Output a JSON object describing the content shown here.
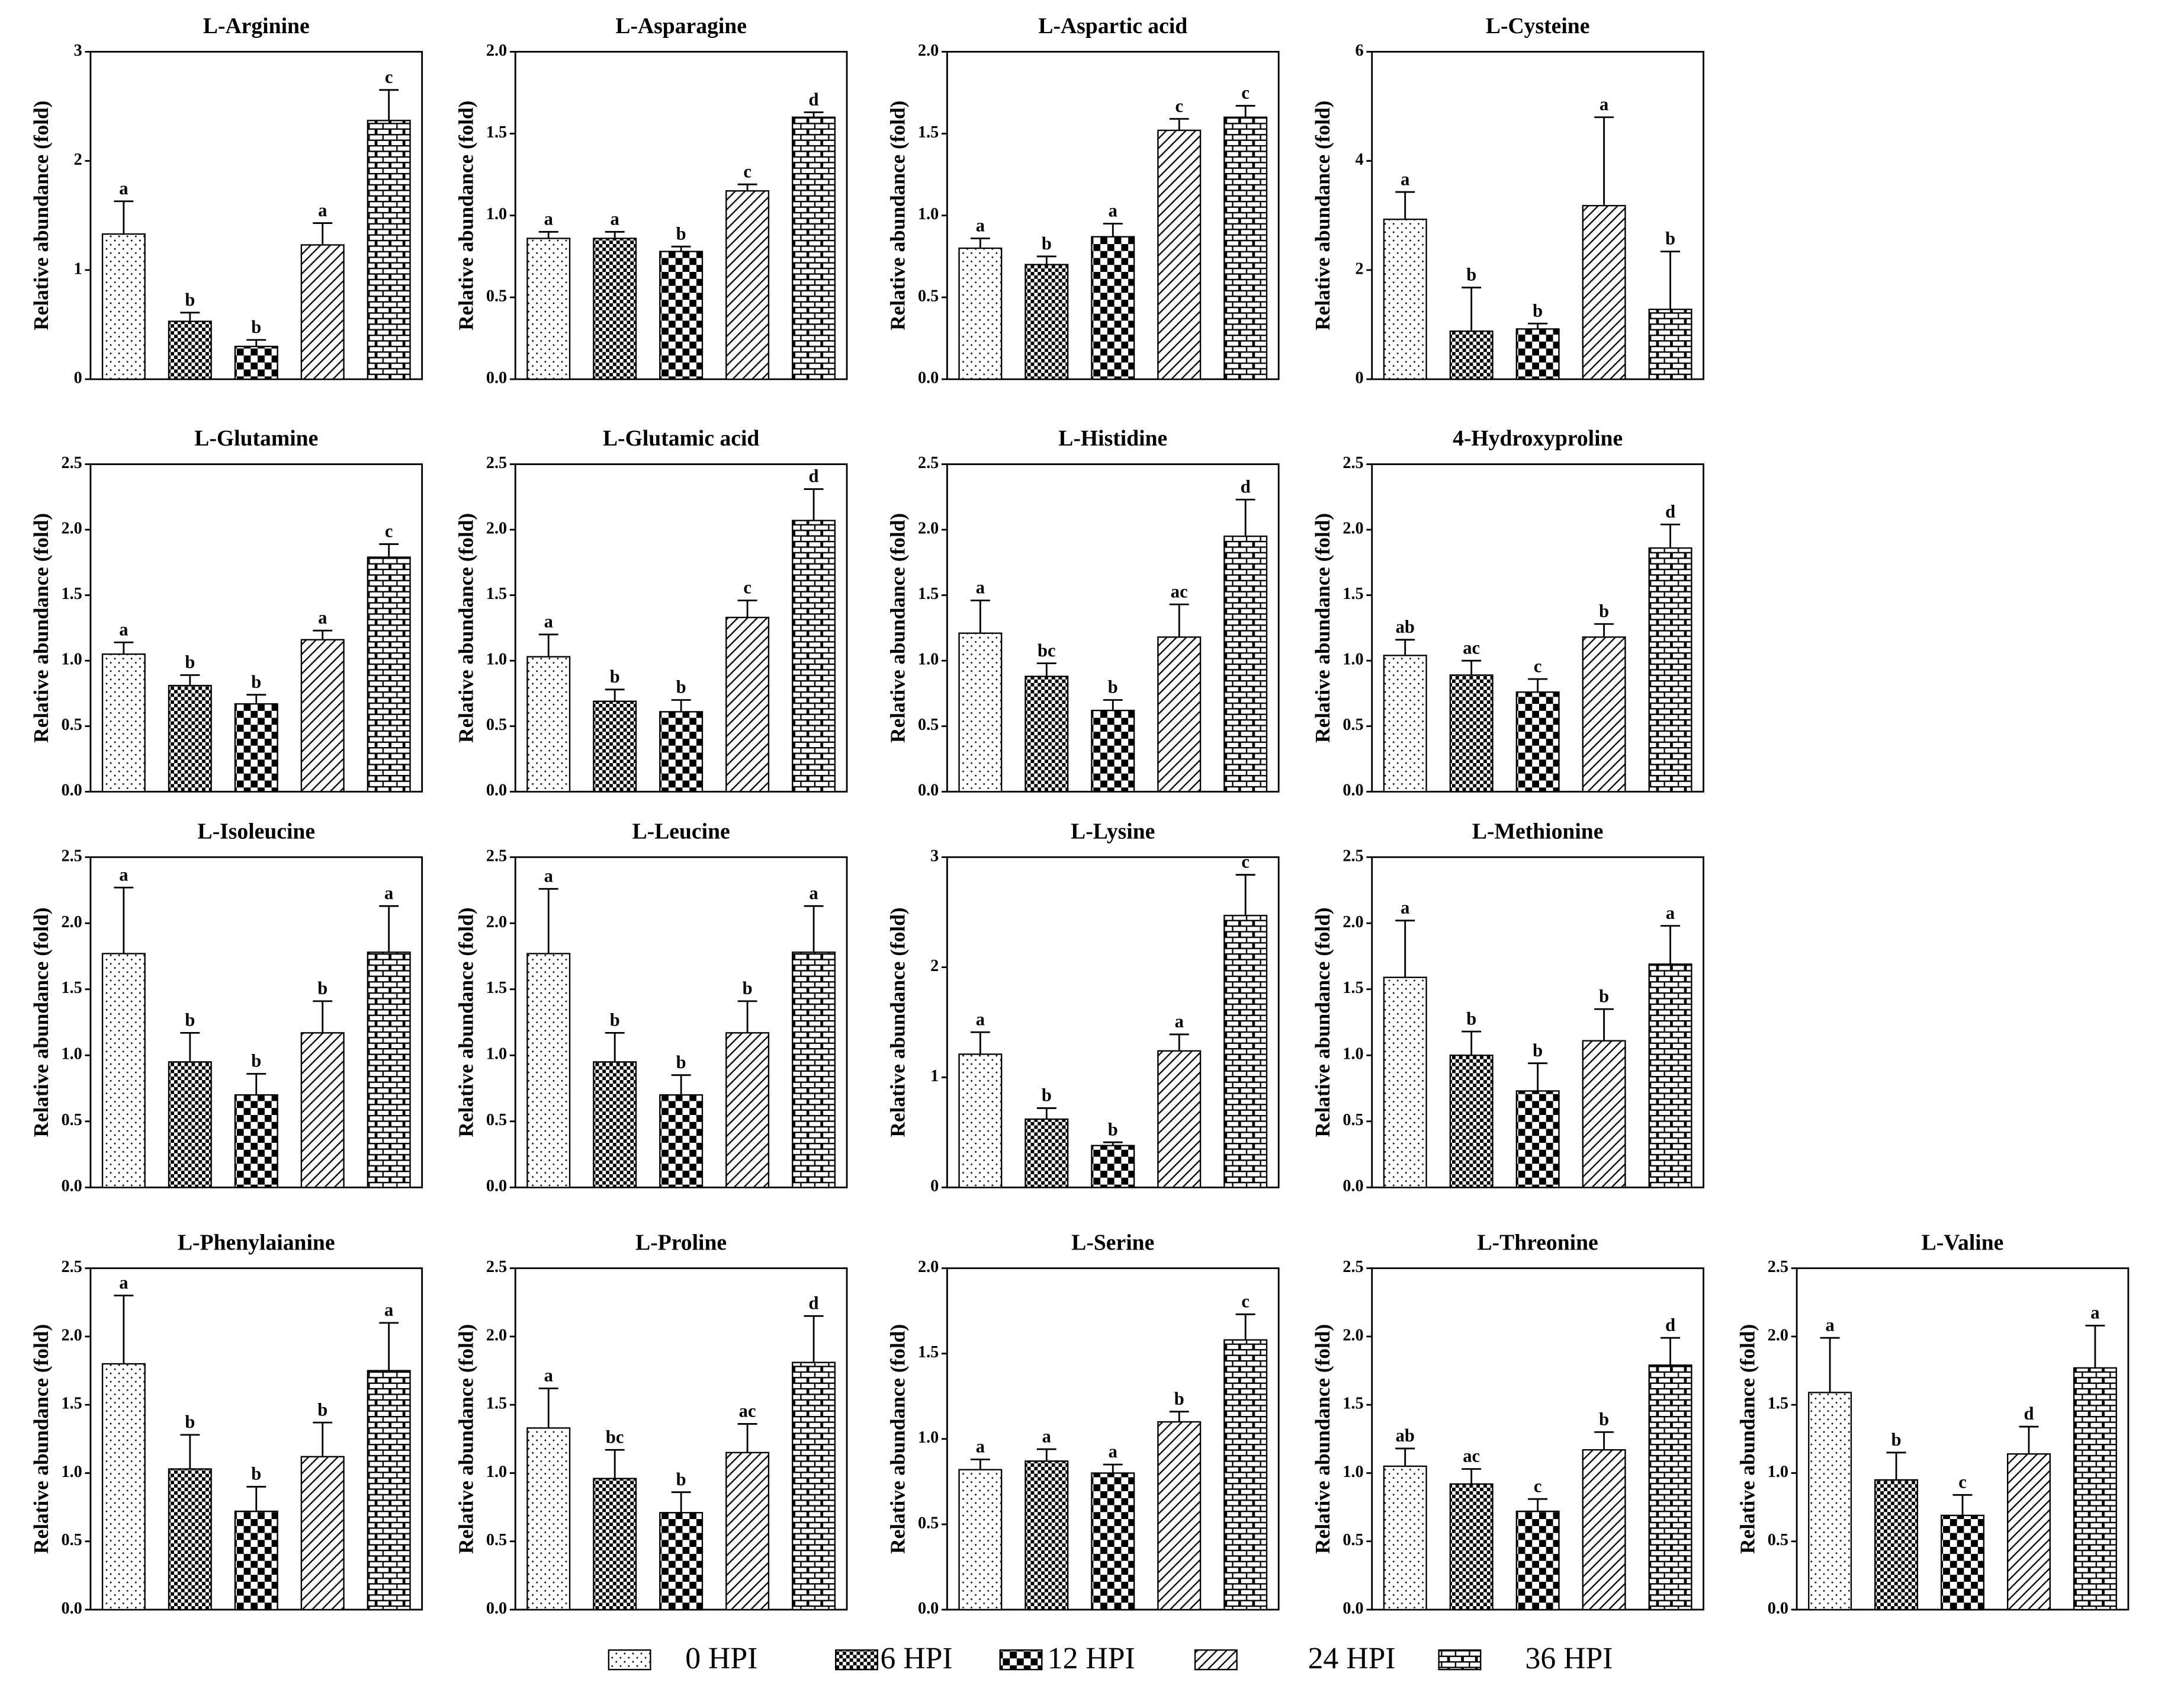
{
  "chart_data": [
    {
      "type": "bar",
      "title": "L-Arginine",
      "y_label": "Relative abundance (fold)",
      "values": [
        1.33,
        0.53,
        0.3,
        1.23,
        2.37
      ],
      "errors": [
        0.3,
        0.08,
        0.06,
        0.2,
        0.28
      ],
      "letters": [
        "a",
        "b",
        "b",
        "a",
        "c"
      ],
      "ylim": [
        0,
        3
      ],
      "yticks": [
        0,
        1,
        2,
        3
      ]
    },
    {
      "type": "bar",
      "title": "L-Asparagine",
      "y_label": "Relative abundance (fold)",
      "values": [
        0.86,
        0.86,
        0.78,
        1.15,
        1.6
      ],
      "errors": [
        0.04,
        0.04,
        0.03,
        0.04,
        0.03
      ],
      "letters": [
        "a",
        "a",
        "b",
        "c",
        "d"
      ],
      "ylim": [
        0,
        2
      ],
      "yticks": [
        {
          "value": 0,
          "label": "0.0"
        },
        0.5,
        {
          "value": 1,
          "label": "1.0"
        },
        1.5,
        {
          "value": 2,
          "label": "2.0"
        }
      ]
    },
    {
      "type": "bar",
      "title": "L-Aspartic acid",
      "y_label": "Relative abundance (fold)",
      "values": [
        0.8,
        0.7,
        0.87,
        1.52,
        1.6
      ],
      "errors": [
        0.06,
        0.05,
        0.08,
        0.07,
        0.07
      ],
      "letters": [
        "a",
        "b",
        "a",
        "c",
        "c"
      ],
      "ylim": [
        0,
        2
      ],
      "yticks": [
        {
          "value": 0,
          "label": "0.0"
        },
        0.5,
        {
          "value": 1,
          "label": "1.0"
        },
        1.5,
        {
          "value": 2,
          "label": "2.0"
        }
      ]
    },
    {
      "type": "bar",
      "title": "L-Cysteine",
      "y_label": "Relative abundance (fold)",
      "values": [
        2.93,
        0.88,
        0.92,
        3.18,
        1.28
      ],
      "errors": [
        0.5,
        0.8,
        0.1,
        1.62,
        1.06
      ],
      "letters": [
        "a",
        "b",
        "b",
        "a",
        "b"
      ],
      "ylim": [
        0,
        6
      ],
      "yticks": [
        0,
        2,
        4,
        6
      ]
    },
    {
      "type": "bar",
      "title": "L-Glutamine",
      "y_label": "Relative abundance (fold)",
      "values": [
        1.05,
        0.81,
        0.67,
        1.16,
        1.79
      ],
      "errors": [
        0.09,
        0.08,
        0.07,
        0.07,
        0.1
      ],
      "letters": [
        "a",
        "b",
        "b",
        "a",
        "c"
      ],
      "ylim": [
        0,
        2.5
      ],
      "yticks": [
        {
          "value": 0,
          "label": "0.0"
        },
        0.5,
        {
          "value": 1,
          "label": "1.0"
        },
        1.5,
        {
          "value": 2,
          "label": "2.0"
        },
        2.5
      ]
    },
    {
      "type": "bar",
      "title": "L-Glutamic acid",
      "y_label": "Relative abundance (fold)",
      "values": [
        1.03,
        0.69,
        0.61,
        1.33,
        2.07
      ],
      "errors": [
        0.17,
        0.09,
        0.09,
        0.13,
        0.24
      ],
      "letters": [
        "a",
        "b",
        "b",
        "c",
        "d"
      ],
      "ylim": [
        0,
        2.5
      ],
      "yticks": [
        {
          "value": 0,
          "label": "0.0"
        },
        0.5,
        {
          "value": 1,
          "label": "1.0"
        },
        1.5,
        {
          "value": 2,
          "label": "2.0"
        },
        2.5
      ]
    },
    {
      "type": "bar",
      "title": "L-Histidine",
      "y_label": "Relative abundance (fold)",
      "values": [
        1.21,
        0.88,
        0.62,
        1.18,
        1.95
      ],
      "errors": [
        0.25,
        0.1,
        0.08,
        0.25,
        0.28
      ],
      "letters": [
        "a",
        "bc",
        "b",
        "ac",
        "d"
      ],
      "ylim": [
        0,
        2.5
      ],
      "yticks": [
        {
          "value": 0,
          "label": "0.0"
        },
        0.5,
        {
          "value": 1,
          "label": "1.0"
        },
        1.5,
        {
          "value": 2,
          "label": "2.0"
        },
        2.5
      ]
    },
    {
      "type": "bar",
      "title": "4-Hydroxyproline",
      "y_label": "Relative abundance (fold)",
      "values": [
        1.04,
        0.89,
        0.76,
        1.18,
        1.86
      ],
      "errors": [
        0.12,
        0.11,
        0.1,
        0.1,
        0.18
      ],
      "letters": [
        "ab",
        "ac",
        "c",
        "b",
        "d"
      ],
      "ylim": [
        0,
        2.5
      ],
      "yticks": [
        {
          "value": 0,
          "label": "0.0"
        },
        0.5,
        {
          "value": 1,
          "label": "1.0"
        },
        1.5,
        {
          "value": 2,
          "label": "2.0"
        },
        2.5
      ]
    },
    {
      "type": "bar",
      "title": "L-Isoleucine",
      "y_label": "Relative abundance (fold)",
      "values": [
        1.77,
        0.95,
        0.7,
        1.17,
        1.78
      ],
      "errors": [
        0.5,
        0.22,
        0.16,
        0.24,
        0.35
      ],
      "letters": [
        "a",
        "b",
        "b",
        "b",
        "a"
      ],
      "ylim": [
        0,
        2.5
      ],
      "yticks": [
        {
          "value": 0,
          "label": "0.0"
        },
        0.5,
        {
          "value": 1,
          "label": "1.0"
        },
        1.5,
        {
          "value": 2,
          "label": "2.0"
        },
        2.5
      ]
    },
    {
      "type": "bar",
      "title": "L-Leucine",
      "y_label": "Relative abundance (fold)",
      "values": [
        1.77,
        0.95,
        0.7,
        1.17,
        1.78
      ],
      "errors": [
        0.49,
        0.22,
        0.15,
        0.24,
        0.35
      ],
      "letters": [
        "a",
        "b",
        "b",
        "b",
        "a"
      ],
      "ylim": [
        0,
        2.5
      ],
      "yticks": [
        {
          "value": 0,
          "label": "0.0"
        },
        0.5,
        {
          "value": 1,
          "label": "1.0"
        },
        1.5,
        {
          "value": 2,
          "label": "2.0"
        },
        2.5
      ]
    },
    {
      "type": "bar",
      "title": "L-Lysine",
      "y_label": "Relative abundance (fold)",
      "values": [
        1.21,
        0.62,
        0.38,
        1.24,
        2.47
      ],
      "errors": [
        0.2,
        0.1,
        0.03,
        0.15,
        0.37
      ],
      "letters": [
        "a",
        "b",
        "b",
        "a",
        "c"
      ],
      "ylim": [
        0,
        3
      ],
      "yticks": [
        0,
        1,
        2,
        3
      ]
    },
    {
      "type": "bar",
      "title": "L-Methionine",
      "y_label": "Relative abundance (fold)",
      "values": [
        1.59,
        1.0,
        0.73,
        1.11,
        1.69
      ],
      "errors": [
        0.43,
        0.18,
        0.21,
        0.24,
        0.29
      ],
      "letters": [
        "a",
        "b",
        "b",
        "b",
        "a"
      ],
      "ylim": [
        0,
        2.5
      ],
      "yticks": [
        {
          "value": 0,
          "label": "0.0"
        },
        0.5,
        {
          "value": 1,
          "label": "1.0"
        },
        1.5,
        {
          "value": 2,
          "label": "2.0"
        },
        2.5
      ]
    },
    {
      "type": "bar",
      "title": "L-Phenylaianine",
      "y_label": "Relative abundance (fold)",
      "values": [
        1.8,
        1.03,
        0.72,
        1.12,
        1.75
      ],
      "errors": [
        0.5,
        0.25,
        0.18,
        0.25,
        0.35
      ],
      "letters": [
        "a",
        "b",
        "b",
        "b",
        "a"
      ],
      "ylim": [
        0,
        2.5
      ],
      "yticks": [
        {
          "value": 0,
          "label": "0.0"
        },
        0.5,
        {
          "value": 1,
          "label": "1.0"
        },
        1.5,
        {
          "value": 2,
          "label": "2.0"
        },
        2.5
      ]
    },
    {
      "type": "bar",
      "title": "L-Proline",
      "y_label": "Relative abundance (fold)",
      "values": [
        1.33,
        0.96,
        0.71,
        1.15,
        1.81
      ],
      "errors": [
        0.29,
        0.21,
        0.15,
        0.21,
        0.34
      ],
      "letters": [
        "a",
        "bc",
        "b",
        "ac",
        "d"
      ],
      "ylim": [
        0,
        2.5
      ],
      "yticks": [
        {
          "value": 0,
          "label": "0.0"
        },
        0.5,
        {
          "value": 1,
          "label": "1.0"
        },
        1.5,
        {
          "value": 2,
          "label": "2.0"
        },
        2.5
      ]
    },
    {
      "type": "bar",
      "title": "L-Serine",
      "y_label": "Relative abundance (fold)",
      "values": [
        0.82,
        0.87,
        0.8,
        1.1,
        1.58
      ],
      "errors": [
        0.06,
        0.07,
        0.05,
        0.06,
        0.15
      ],
      "letters": [
        "a",
        "a",
        "a",
        "b",
        "c"
      ],
      "ylim": [
        0,
        2
      ],
      "yticks": [
        {
          "value": 0,
          "label": "0.0"
        },
        0.5,
        {
          "value": 1,
          "label": "1.0"
        },
        1.5,
        {
          "value": 2,
          "label": "2.0"
        }
      ]
    },
    {
      "type": "bar",
      "title": "L-Threonine",
      "y_label": "Relative abundance (fold)",
      "values": [
        1.05,
        0.92,
        0.72,
        1.17,
        1.79
      ],
      "errors": [
        0.13,
        0.11,
        0.09,
        0.13,
        0.2
      ],
      "letters": [
        "ab",
        "ac",
        "c",
        "b",
        "d"
      ],
      "ylim": [
        0,
        2.5
      ],
      "yticks": [
        {
          "value": 0,
          "label": "0.0"
        },
        0.5,
        {
          "value": 1,
          "label": "1.0"
        },
        1.5,
        {
          "value": 2,
          "label": "2.0"
        },
        2.5
      ]
    },
    {
      "type": "bar",
      "title": "L-Valine",
      "y_label": "Relative abundance (fold)",
      "values": [
        1.59,
        0.95,
        0.69,
        1.14,
        1.77
      ],
      "errors": [
        0.4,
        0.2,
        0.15,
        0.2,
        0.31
      ],
      "letters": [
        "a",
        "b",
        "c",
        "d",
        "a"
      ],
      "ylim": [
        0,
        2.5
      ],
      "yticks": [
        {
          "value": 0,
          "label": "0.0"
        },
        0.5,
        {
          "value": 1,
          "label": "1.0"
        },
        1.5,
        {
          "value": 2,
          "label": "2.0"
        },
        2.5
      ]
    }
  ],
  "legend": [
    "0 HPI",
    "6 HPI",
    "12 HPI",
    "24 HPI",
    "36 HPI"
  ]
}
